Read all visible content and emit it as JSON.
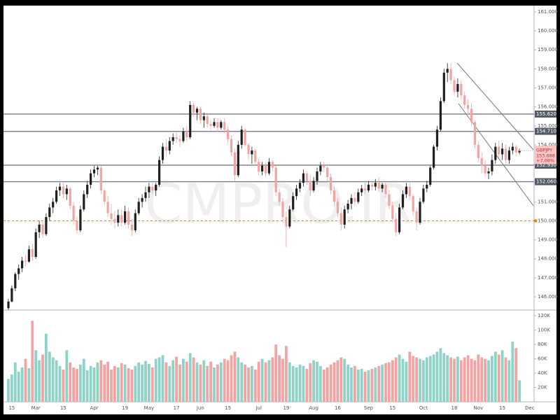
{
  "chart_data": {
    "type": "candlestick",
    "symbol": "GBPJPY",
    "change": "+7.08%",
    "last_price": {
      "value": 153.688,
      "label": "153.688"
    },
    "watermark": "CMPRO.IR",
    "up_color": "#1f1f1f",
    "down_color": "#f4a3a3",
    "ylim": [
      145.3,
      161.33
    ],
    "yticks": [
      {
        "value": 146,
        "label": "146.000"
      },
      {
        "value": 147,
        "label": "147.000"
      },
      {
        "value": 148,
        "label": "148.000"
      },
      {
        "value": 149,
        "label": "149.000"
      },
      {
        "value": 150,
        "label": "150.000"
      },
      {
        "value": 151,
        "label": "151.000"
      },
      {
        "value": 152,
        "label": "152.000"
      },
      {
        "value": 153,
        "label": "153.000"
      },
      {
        "value": 154,
        "label": "154.000"
      },
      {
        "value": 155,
        "label": "155.000"
      },
      {
        "value": 156,
        "label": "156.000"
      },
      {
        "value": 157,
        "label": "157.000"
      },
      {
        "value": 158,
        "label": "158.000"
      },
      {
        "value": 159,
        "label": "159.000"
      },
      {
        "value": 160,
        "label": "160.000"
      },
      {
        "value": 161,
        "label": "161.000"
      }
    ],
    "levels": [
      {
        "value": 155.62,
        "label": "155.620"
      },
      {
        "value": 154.71,
        "label": "154.710"
      },
      {
        "value": 152.93,
        "label": "152.930"
      },
      {
        "value": 152.06,
        "label": "152.060"
      }
    ],
    "level_color": "#787b86",
    "reference_line": 150,
    "reference_color": "#f57c00",
    "categories": [
      null,
      "15",
      null,
      null,
      null,
      null,
      null,
      null,
      "Mar",
      null,
      null,
      null,
      null,
      null,
      null,
      null,
      "15",
      null,
      null,
      null,
      null,
      null,
      null,
      null,
      null,
      "Apr",
      null,
      null,
      null,
      null,
      null,
      null,
      null,
      null,
      "19",
      null,
      null,
      null,
      null,
      null,
      null,
      "May",
      null,
      null,
      null,
      null,
      null,
      null,
      null,
      "17",
      null,
      null,
      null,
      null,
      null,
      null,
      "Jun",
      null,
      null,
      null,
      null,
      null,
      null,
      null,
      "15",
      null,
      null,
      null,
      null,
      null,
      null,
      null,
      null,
      "Jul",
      null,
      null,
      null,
      null,
      null,
      null,
      null,
      "19",
      null,
      null,
      null,
      null,
      null,
      null,
      null,
      "Aug",
      null,
      null,
      null,
      null,
      null,
      null,
      "16",
      null,
      null,
      null,
      null,
      null,
      null,
      null,
      null,
      "Sep",
      null,
      null,
      null,
      null,
      null,
      null,
      "15",
      null,
      null,
      null,
      null,
      null,
      null,
      null,
      null,
      "Oct",
      null,
      null,
      null,
      null,
      null,
      null,
      null,
      null,
      "18",
      null,
      null,
      null,
      null,
      null,
      null,
      "Nov",
      null,
      null,
      null,
      null,
      null,
      null,
      "15",
      null,
      null,
      null,
      null,
      null,
      null,
      null,
      "Dec"
    ],
    "candles": [
      [
        145.4,
        145.9,
        145.3,
        145.75
      ],
      [
        145.75,
        146.6,
        145.7,
        146.45
      ],
      [
        146.45,
        147.3,
        146.3,
        147.2
      ],
      [
        147.2,
        147.7,
        146.9,
        147.5
      ],
      [
        147.5,
        148.1,
        147.3,
        147.9
      ],
      [
        147.9,
        148.2,
        147.6,
        147.85
      ],
      [
        147.85,
        148.7,
        147.8,
        148.5
      ],
      [
        148.5,
        148.8,
        147.9,
        148.1
      ],
      [
        148.1,
        149.6,
        148.0,
        149.4
      ],
      [
        149.4,
        150.0,
        149.1,
        149.8
      ],
      [
        149.8,
        149.95,
        149.1,
        149.3
      ],
      [
        149.3,
        150.4,
        149.2,
        150.2
      ],
      [
        150.2,
        150.9,
        150.0,
        150.7
      ],
      [
        150.7,
        151.2,
        150.4,
        151.0
      ],
      [
        151.0,
        151.8,
        150.9,
        151.6
      ],
      [
        151.6,
        152.0,
        151.3,
        151.8
      ],
      [
        151.8,
        152.0,
        151.2,
        151.4
      ],
      [
        151.4,
        151.9,
        151.1,
        151.7
      ],
      [
        151.7,
        151.8,
        150.6,
        150.8
      ],
      [
        150.8,
        151.0,
        149.8,
        150.0
      ],
      [
        150.0,
        150.2,
        149.3,
        149.5
      ],
      [
        149.5,
        150.8,
        149.4,
        150.6
      ],
      [
        150.6,
        151.6,
        150.5,
        151.4
      ],
      [
        151.4,
        152.1,
        151.2,
        151.9
      ],
      [
        151.9,
        152.7,
        151.7,
        152.5
      ],
      [
        152.5,
        152.9,
        152.3,
        152.7
      ],
      [
        152.7,
        152.9,
        152.4,
        152.8
      ],
      [
        152.8,
        152.9,
        151.4,
        151.6
      ],
      [
        151.6,
        151.7,
        150.8,
        151.0
      ],
      [
        151.0,
        151.3,
        150.2,
        150.4
      ],
      [
        150.4,
        150.9,
        149.8,
        150.1
      ],
      [
        150.1,
        150.5,
        149.6,
        149.9
      ],
      [
        149.9,
        150.6,
        149.7,
        150.3
      ],
      [
        150.3,
        150.6,
        149.7,
        149.9
      ],
      [
        149.9,
        150.8,
        149.8,
        150.5
      ],
      [
        150.5,
        150.7,
        149.6,
        149.8
      ],
      [
        149.8,
        150.1,
        149.2,
        149.5
      ],
      [
        149.5,
        150.6,
        149.4,
        150.4
      ],
      [
        150.4,
        151.2,
        150.3,
        151.0
      ],
      [
        151.0,
        151.4,
        150.7,
        151.2
      ],
      [
        151.2,
        151.8,
        151.0,
        151.5
      ],
      [
        151.5,
        152.0,
        151.2,
        151.8
      ],
      [
        151.8,
        152.0,
        151.4,
        151.6
      ],
      [
        151.6,
        152.0,
        151.3,
        151.9
      ],
      [
        151.9,
        153.4,
        151.8,
        153.2
      ],
      [
        153.2,
        154.1,
        153.0,
        153.9
      ],
      [
        153.9,
        154.3,
        153.4,
        153.7
      ],
      [
        153.7,
        154.4,
        153.5,
        154.2
      ],
      [
        154.2,
        154.6,
        154.0,
        154.4
      ],
      [
        154.4,
        154.7,
        154.1,
        154.3
      ],
      [
        154.3,
        154.5,
        153.9,
        154.2
      ],
      [
        154.2,
        154.9,
        154.1,
        154.7
      ],
      [
        154.7,
        155.0,
        154.2,
        154.4
      ],
      [
        154.4,
        156.3,
        154.3,
        156.1
      ],
      [
        156.1,
        156.2,
        155.5,
        155.7
      ],
      [
        155.7,
        156.0,
        155.3,
        155.9
      ],
      [
        155.9,
        156.0,
        155.1,
        155.3
      ],
      [
        155.3,
        155.7,
        154.9,
        155.5
      ],
      [
        155.5,
        155.6,
        154.9,
        155.1
      ],
      [
        155.1,
        155.3,
        154.8,
        155.0
      ],
      [
        155.0,
        155.4,
        154.9,
        155.2
      ],
      [
        155.2,
        155.4,
        154.7,
        154.9
      ],
      [
        154.9,
        155.3,
        154.8,
        155.2
      ],
      [
        155.2,
        155.4,
        154.6,
        154.8
      ],
      [
        154.8,
        155.0,
        154.1,
        154.3
      ],
      [
        154.3,
        154.5,
        153.4,
        153.6
      ],
      [
        153.6,
        153.8,
        152.1,
        152.4
      ],
      [
        152.4,
        154.2,
        152.3,
        154.0
      ],
      [
        154.0,
        155.0,
        153.8,
        154.8
      ],
      [
        154.8,
        154.9,
        153.9,
        154.0
      ],
      [
        154.0,
        154.1,
        153.2,
        153.5
      ],
      [
        153.5,
        153.9,
        153.0,
        153.7
      ],
      [
        153.7,
        153.8,
        152.9,
        153.1
      ],
      [
        153.1,
        153.3,
        152.4,
        152.6
      ],
      [
        152.6,
        153.1,
        152.4,
        152.9
      ],
      [
        152.9,
        153.1,
        152.3,
        152.5
      ],
      [
        152.5,
        153.3,
        152.4,
        153.1
      ],
      [
        153.1,
        153.2,
        152.6,
        152.8
      ],
      [
        152.8,
        152.9,
        151.3,
        151.5
      ],
      [
        151.5,
        151.7,
        150.8,
        151.0
      ],
      [
        151.0,
        151.2,
        149.9,
        150.2
      ],
      [
        150.2,
        150.5,
        148.6,
        149.7
      ],
      [
        149.7,
        150.8,
        149.6,
        150.6
      ],
      [
        150.6,
        151.5,
        150.5,
        151.3
      ],
      [
        151.3,
        151.9,
        151.1,
        151.7
      ],
      [
        151.7,
        152.2,
        151.5,
        152.0
      ],
      [
        152.0,
        152.7,
        151.8,
        152.5
      ],
      [
        152.5,
        152.6,
        151.9,
        152.1
      ],
      [
        152.1,
        152.4,
        151.3,
        151.6
      ],
      [
        151.6,
        152.3,
        151.5,
        152.1
      ],
      [
        152.1,
        152.8,
        151.9,
        152.6
      ],
      [
        152.6,
        153.1,
        152.4,
        152.9
      ],
      [
        152.9,
        153.1,
        152.6,
        152.8
      ],
      [
        152.8,
        153.0,
        152.1,
        152.3
      ],
      [
        152.3,
        152.5,
        151.4,
        151.6
      ],
      [
        151.6,
        151.8,
        150.8,
        151.0
      ],
      [
        151.0,
        151.2,
        150.2,
        150.4
      ],
      [
        150.4,
        150.7,
        149.5,
        149.8
      ],
      [
        149.8,
        150.8,
        149.6,
        150.6
      ],
      [
        150.6,
        151.1,
        150.4,
        150.9
      ],
      [
        150.9,
        151.4,
        150.6,
        151.2
      ],
      [
        151.2,
        151.5,
        150.8,
        151.0
      ],
      [
        151.0,
        151.7,
        150.9,
        151.5
      ],
      [
        151.5,
        151.9,
        151.3,
        151.7
      ],
      [
        151.7,
        152.0,
        151.4,
        151.6
      ],
      [
        151.6,
        152.1,
        151.5,
        151.9
      ],
      [
        151.9,
        152.1,
        151.6,
        151.8
      ],
      [
        151.8,
        152.2,
        151.6,
        152.0
      ],
      [
        152.0,
        152.3,
        151.5,
        151.7
      ],
      [
        151.7,
        152.0,
        151.5,
        151.9
      ],
      [
        151.9,
        152.0,
        151.2,
        151.4
      ],
      [
        151.4,
        151.6,
        150.6,
        150.8
      ],
      [
        150.8,
        151.0,
        149.9,
        150.1
      ],
      [
        150.1,
        150.4,
        149.2,
        149.4
      ],
      [
        149.4,
        150.9,
        149.3,
        150.7
      ],
      [
        150.7,
        151.6,
        150.6,
        151.4
      ],
      [
        151.4,
        152.0,
        151.2,
        151.8
      ],
      [
        151.8,
        152.0,
        151.1,
        151.3
      ],
      [
        151.3,
        151.4,
        150.3,
        150.5
      ],
      [
        150.5,
        150.7,
        149.5,
        149.9
      ],
      [
        149.9,
        151.2,
        149.8,
        151.0
      ],
      [
        151.0,
        151.9,
        150.9,
        151.7
      ],
      [
        151.7,
        152.1,
        151.5,
        151.9
      ],
      [
        151.9,
        152.9,
        151.8,
        152.8
      ],
      [
        152.8,
        154.0,
        152.7,
        153.9
      ],
      [
        153.9,
        155.0,
        153.7,
        154.8
      ],
      [
        154.8,
        156.5,
        154.7,
        156.3
      ],
      [
        156.3,
        158.0,
        156.2,
        157.8
      ],
      [
        157.8,
        158.3,
        157.3,
        158.0
      ],
      [
        158.0,
        158.3,
        157.2,
        157.4
      ],
      [
        157.4,
        157.6,
        156.6,
        156.8
      ],
      [
        156.8,
        157.5,
        156.5,
        157.2
      ],
      [
        157.2,
        157.4,
        156.4,
        156.6
      ],
      [
        156.6,
        156.8,
        155.9,
        156.1
      ],
      [
        156.1,
        156.4,
        155.6,
        155.9
      ],
      [
        155.9,
        156.2,
        155.0,
        155.2
      ],
      [
        155.2,
        155.3,
        153.8,
        154.0
      ],
      [
        154.0,
        154.2,
        153.1,
        153.3
      ],
      [
        153.3,
        153.6,
        152.5,
        152.9
      ],
      [
        152.9,
        153.2,
        152.3,
        152.5
      ],
      [
        152.5,
        152.8,
        152.2,
        152.6
      ],
      [
        152.6,
        153.5,
        152.4,
        153.2
      ],
      [
        153.2,
        154.1,
        153.0,
        153.9
      ],
      [
        153.9,
        154.2,
        153.3,
        153.5
      ],
      [
        153.5,
        154.1,
        153.2,
        153.8
      ],
      [
        153.8,
        154.0,
        153.0,
        153.2
      ],
      [
        153.2,
        153.9,
        153.0,
        153.7
      ],
      [
        153.7,
        154.1,
        153.5,
        153.9
      ],
      [
        153.9,
        154.0,
        153.4,
        153.6
      ],
      [
        153.6,
        153.8,
        153.5,
        153.688
      ],
      null,
      null,
      null
    ],
    "volume": {
      "up_color": "#8fd3c8",
      "down_color": "#f4a3a3",
      "ylim": [
        0,
        128000
      ],
      "yticks": [
        {
          "value": 20000,
          "label": "20K"
        },
        {
          "value": 40000,
          "label": "40K"
        },
        {
          "value": 60000,
          "label": "60K"
        },
        {
          "value": 80000,
          "label": "80K"
        },
        {
          "value": 100000,
          "label": "100K"
        },
        {
          "value": 120000,
          "label": "120K"
        }
      ],
      "values": [
        32000,
        38000,
        55000,
        42000,
        48000,
        60000,
        47000,
        113000,
        72000,
        58000,
        66000,
        95000,
        70000,
        62000,
        58000,
        50000,
        45000,
        72000,
        55000,
        48000,
        46000,
        52000,
        60000,
        44000,
        50000,
        48000,
        55000,
        58000,
        52000,
        56000,
        45000,
        50000,
        48000,
        54000,
        52000,
        47000,
        45000,
        50000,
        55000,
        52000,
        57000,
        53000,
        48000,
        60000,
        62000,
        65000,
        55000,
        50000,
        58000,
        63000,
        52000,
        60000,
        56000,
        68000,
        62000,
        55000,
        52000,
        58000,
        50000,
        56000,
        48000,
        52000,
        55000,
        60000,
        58000,
        65000,
        70000,
        62000,
        55000,
        52000,
        48000,
        50000,
        45000,
        56000,
        60000,
        55000,
        58000,
        62000,
        80000,
        65000,
        60000,
        78000,
        55000,
        50000,
        48000,
        52000,
        50000,
        46000,
        54000,
        58000,
        56000,
        50000,
        45000,
        48000,
        52000,
        55000,
        58000,
        62000,
        60000,
        52000,
        48000,
        50000,
        45000,
        46000,
        42000,
        44000,
        46000,
        48000,
        50000,
        52000,
        54000,
        55000,
        58000,
        62000,
        66000,
        60000,
        56000,
        70000,
        64000,
        62000,
        60000,
        58000,
        62000,
        64000,
        66000,
        70000,
        75000,
        68000,
        65000,
        62000,
        60000,
        63000,
        58000,
        62000,
        65000,
        60000,
        58000,
        66000,
        62000,
        60000,
        58000,
        64000,
        70000,
        66000,
        72000,
        62000,
        58000,
        84000,
        75000,
        30000,
        null,
        null,
        null
      ]
    }
  }
}
